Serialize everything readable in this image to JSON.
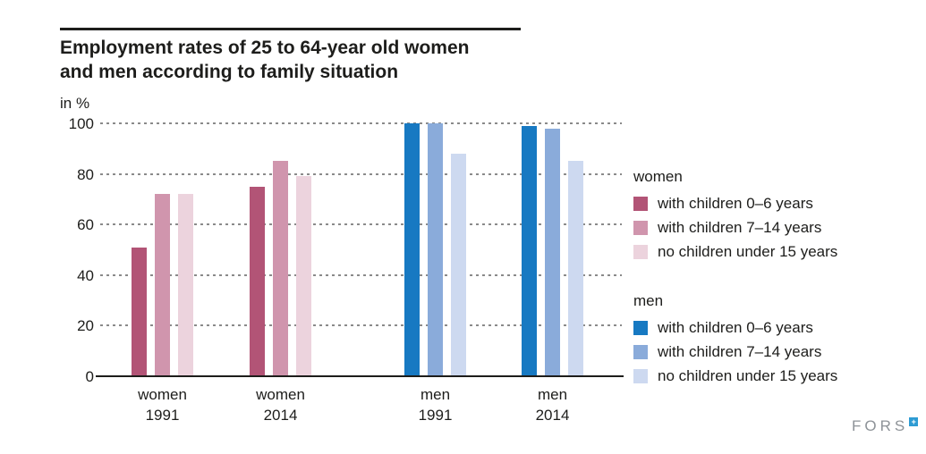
{
  "header": {
    "title_line1": "Employment rates of 25 to 64-year old women",
    "title_line2": "and men according to family situation"
  },
  "chart_data": {
    "type": "bar",
    "title": "Employment rates of 25 to 64-year old women and men according to family situation",
    "unit_label": "in %",
    "ylim": [
      0,
      100
    ],
    "y_ticks": [
      0,
      20,
      40,
      60,
      80,
      100
    ],
    "grid": "horizontal-dotted",
    "legend_position": "right",
    "bar_categories": [
      "with children 0–6 years",
      "with children 7–14 years",
      "no children under 15 years"
    ],
    "palettes": {
      "women": [
        "#b25476",
        "#d095ad",
        "#ecd3dd"
      ],
      "men": [
        "#1779c2",
        "#8aabda",
        "#cdd9f0"
      ]
    },
    "groups": [
      {
        "label_line1": "women",
        "label_line2": "1991",
        "palette": "women",
        "values": [
          51,
          72,
          72
        ]
      },
      {
        "label_line1": "women",
        "label_line2": "2014",
        "palette": "women",
        "values": [
          75,
          85,
          79
        ]
      },
      {
        "label_line1": "men",
        "label_line2": "1991",
        "palette": "men",
        "values": [
          100,
          100,
          88
        ]
      },
      {
        "label_line1": "men",
        "label_line2": "2014",
        "palette": "men",
        "values": [
          99,
          98,
          85
        ]
      }
    ]
  },
  "legend": {
    "sections": [
      {
        "heading": "women",
        "palette": "women",
        "items": [
          "with children 0–6 years",
          "with children 7–14 years",
          "no children under 15 years"
        ]
      },
      {
        "heading": "men",
        "palette": "men",
        "items": [
          "with children 0–6 years",
          "with children 7–14 years",
          "no children under 15 years"
        ]
      }
    ]
  },
  "branding": {
    "logo_text": "FORS",
    "logo_mark_symbol": "+",
    "logo_mark_color": "#2d9bd3"
  }
}
